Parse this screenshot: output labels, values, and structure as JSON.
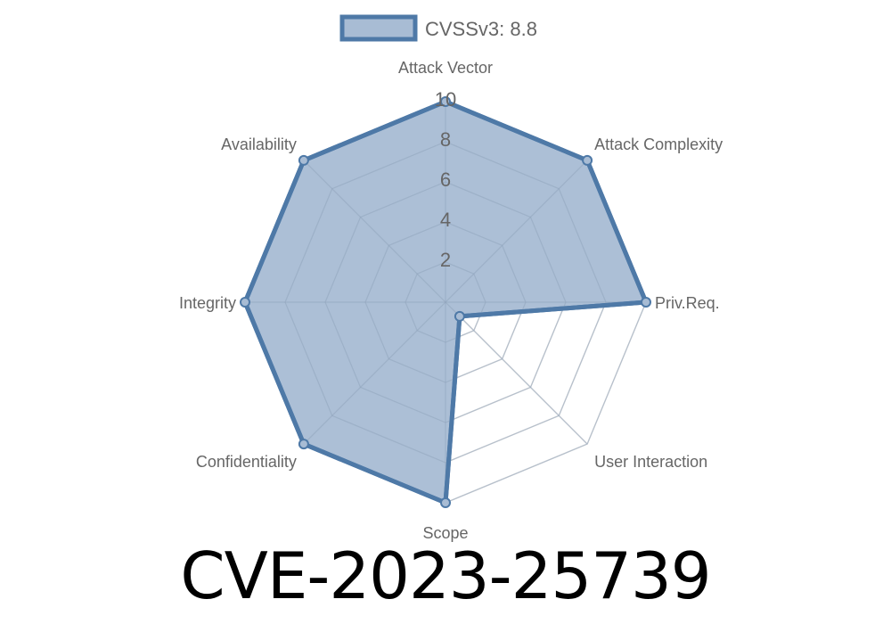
{
  "chart_data": {
    "type": "radar",
    "axes": [
      "Attack Vector",
      "Attack Complexity",
      "Priv.Req.",
      "User Interaction",
      "Scope",
      "Confidentiality",
      "Integrity",
      "Availability"
    ],
    "series": [
      {
        "name": "CVSSv3: 8.8",
        "values": [
          10,
          10,
          10,
          1,
          10,
          10,
          10,
          10
        ]
      }
    ],
    "rlim": [
      0,
      10
    ],
    "ticks": [
      "2",
      "4",
      "6",
      "8",
      "10"
    ],
    "grid": true,
    "legend": "top",
    "colors": {
      "stroke": "#4e79a7",
      "fill": "#a8bcd4",
      "grid": "#dddddd"
    }
  },
  "title": "CVE-2023-25739"
}
